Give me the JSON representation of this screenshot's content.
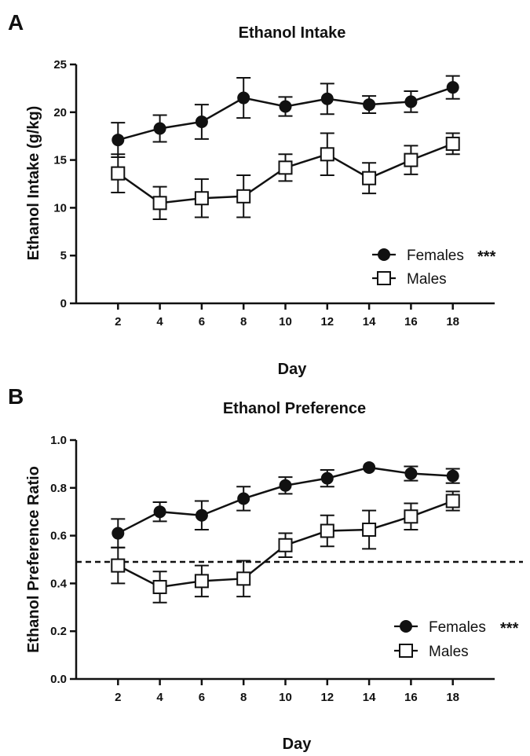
{
  "chart_data": [
    {
      "panel": "A",
      "type": "line",
      "title": "Ethanol Intake",
      "xlabel": "Day",
      "ylabel": "Ethanol Intake (g/kg)",
      "x": [
        2,
        4,
        6,
        8,
        10,
        12,
        14,
        16,
        18
      ],
      "xlim": [
        0,
        20
      ],
      "ylim": [
        0,
        25
      ],
      "yticks": [
        "0",
        "5",
        "10",
        "15",
        "20",
        "25"
      ],
      "xticks": [
        "2",
        "4",
        "6",
        "8",
        "10",
        "12",
        "14",
        "16",
        "18"
      ],
      "grid": false,
      "legend_position": "bottom-right",
      "series": [
        {
          "name": "Females",
          "annotation": "***",
          "marker": "filled-circle",
          "color": "#111111",
          "values": [
            17.1,
            18.3,
            19.0,
            21.5,
            20.6,
            21.4,
            20.8,
            21.1,
            22.6
          ],
          "errors": [
            1.8,
            1.4,
            1.8,
            2.1,
            1.0,
            1.6,
            0.9,
            1.1,
            1.2
          ]
        },
        {
          "name": "Males",
          "marker": "open-square",
          "color": "#111111",
          "values": [
            13.6,
            10.5,
            11.0,
            11.2,
            14.2,
            15.6,
            13.1,
            15.0,
            16.7
          ],
          "errors": [
            2.0,
            1.7,
            2.0,
            2.2,
            1.4,
            2.2,
            1.6,
            1.5,
            1.1
          ]
        }
      ]
    },
    {
      "panel": "B",
      "type": "line",
      "title": "Ethanol Preference",
      "xlabel": "Day",
      "ylabel": "Ethanol Preference Ratio",
      "x": [
        2,
        4,
        6,
        8,
        10,
        12,
        14,
        16,
        18
      ],
      "xlim": [
        0,
        20
      ],
      "ylim": [
        0,
        1
      ],
      "yticks": [
        "0.0",
        "0.2",
        "0.4",
        "0.6",
        "0.8",
        "1.0"
      ],
      "xticks": [
        "2",
        "4",
        "6",
        "8",
        "10",
        "12",
        "14",
        "16",
        "18"
      ],
      "grid": false,
      "reference_line": 0.49,
      "legend_position": "bottom-right",
      "series": [
        {
          "name": "Females",
          "annotation": "***",
          "marker": "filled-circle",
          "color": "#111111",
          "values": [
            0.61,
            0.7,
            0.685,
            0.755,
            0.81,
            0.84,
            0.885,
            0.86,
            0.85
          ],
          "errors": [
            0.06,
            0.04,
            0.06,
            0.05,
            0.035,
            0.035,
            0.0,
            0.03,
            0.03
          ]
        },
        {
          "name": "Males",
          "marker": "open-square",
          "color": "#111111",
          "values": [
            0.475,
            0.385,
            0.41,
            0.42,
            0.56,
            0.62,
            0.625,
            0.68,
            0.745
          ],
          "errors": [
            0.075,
            0.065,
            0.065,
            0.075,
            0.05,
            0.065,
            0.08,
            0.055,
            0.04
          ]
        }
      ]
    }
  ]
}
